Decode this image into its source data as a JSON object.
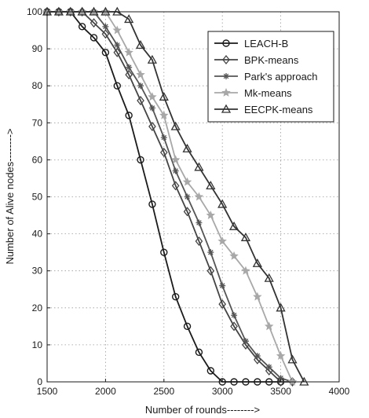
{
  "chart_data": {
    "type": "line",
    "title": "",
    "xlabel": "Number of rounds-------->",
    "ylabel": "Number of Alive nodes-------->",
    "xlim": [
      1500,
      4000
    ],
    "ylim": [
      0,
      100
    ],
    "xticks": [
      "1500",
      "2000",
      "2500",
      "3000",
      "3500",
      "4000"
    ],
    "yticks": [
      "0",
      "10",
      "20",
      "30",
      "40",
      "50",
      "60",
      "70",
      "80",
      "90",
      "100"
    ],
    "grid": true,
    "legend_position": "top-right",
    "series": [
      {
        "name": "LEACH-B",
        "marker": "circle",
        "color": "#1a1a1a",
        "x": [
          1500,
          1600,
          1700,
          1800,
          1900,
          2000,
          2100,
          2200,
          2300,
          2400,
          2500,
          2600,
          2700,
          2800,
          2900,
          3000,
          3100,
          3200,
          3300,
          3400,
          3500
        ],
        "y": [
          100,
          100,
          100,
          96,
          93,
          89,
          80,
          72,
          60,
          48,
          35,
          23,
          15,
          8,
          3,
          0,
          0,
          0,
          0,
          0,
          0
        ]
      },
      {
        "name": "BPK-means",
        "marker": "diamond",
        "color": "#444444",
        "x": [
          1500,
          1600,
          1700,
          1800,
          1900,
          2000,
          2100,
          2200,
          2300,
          2400,
          2500,
          2600,
          2700,
          2800,
          2900,
          3000,
          3100,
          3200,
          3300,
          3400,
          3500,
          3600
        ],
        "y": [
          100,
          100,
          100,
          100,
          97,
          94,
          89,
          83,
          76,
          69,
          62,
          53,
          46,
          38,
          30,
          21,
          15,
          10,
          6,
          3,
          0,
          0
        ]
      },
      {
        "name": "Park's approach",
        "marker": "asterisk",
        "color": "#555555",
        "x": [
          1500,
          1600,
          1700,
          1800,
          1900,
          2000,
          2100,
          2200,
          2300,
          2400,
          2500,
          2600,
          2700,
          2800,
          2900,
          3000,
          3100,
          3200,
          3300,
          3400,
          3500,
          3600
        ],
        "y": [
          100,
          100,
          100,
          100,
          100,
          96,
          91,
          85,
          80,
          74,
          66,
          57,
          50,
          43,
          35,
          26,
          18,
          11,
          7,
          4,
          1,
          0
        ]
      },
      {
        "name": "Mk-means",
        "marker": "star",
        "color": "#a8a8a8",
        "x": [
          1500,
          1600,
          1700,
          1800,
          1900,
          2000,
          2100,
          2200,
          2300,
          2400,
          2500,
          2600,
          2700,
          2800,
          2900,
          3000,
          3100,
          3200,
          3300,
          3400,
          3500,
          3600
        ],
        "y": [
          100,
          100,
          100,
          100,
          100,
          100,
          95,
          89,
          83,
          77,
          72,
          60,
          54,
          50,
          45,
          38,
          34,
          30,
          23,
          15,
          7,
          0
        ]
      },
      {
        "name": "EECPK-means",
        "marker": "triangle",
        "color": "#333333",
        "x": [
          1500,
          1600,
          1700,
          1800,
          1900,
          2000,
          2100,
          2200,
          2300,
          2400,
          2500,
          2600,
          2700,
          2800,
          2900,
          3000,
          3100,
          3200,
          3300,
          3400,
          3500,
          3600,
          3700
        ],
        "y": [
          100,
          100,
          100,
          100,
          100,
          100,
          100,
          98,
          91,
          87,
          77,
          69,
          63,
          58,
          53,
          48,
          42,
          39,
          32,
          28,
          20,
          6,
          0
        ]
      }
    ]
  }
}
